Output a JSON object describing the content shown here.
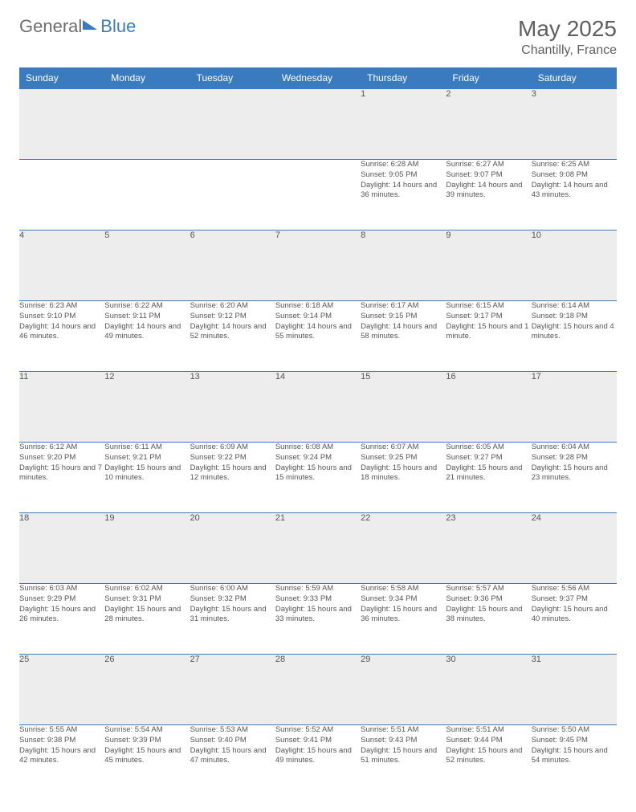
{
  "logo": {
    "text_left": "General",
    "text_right": "Blue",
    "accent_color": "#3a7bbf",
    "muted_color": "#6e6e6e"
  },
  "title": {
    "month_year": "May 2025",
    "location": "Chantilly, France"
  },
  "colors": {
    "header_bg": "#3a7bbf",
    "header_text": "#ffffff",
    "daynum_bg": "#ededed",
    "text": "#555555",
    "rule": "#3a7bbf",
    "page_bg": "#ffffff"
  },
  "day_headers": [
    "Sunday",
    "Monday",
    "Tuesday",
    "Wednesday",
    "Thursday",
    "Friday",
    "Saturday"
  ],
  "weeks": [
    {
      "nums": [
        "",
        "",
        "",
        "",
        "1",
        "2",
        "3"
      ],
      "details": [
        "",
        "",
        "",
        "",
        "Sunrise: 6:28 AM\nSunset: 9:05 PM\nDaylight: 14 hours and 36 minutes.",
        "Sunrise: 6:27 AM\nSunset: 9:07 PM\nDaylight: 14 hours and 39 minutes.",
        "Sunrise: 6:25 AM\nSunset: 9:08 PM\nDaylight: 14 hours and 43 minutes."
      ]
    },
    {
      "nums": [
        "4",
        "5",
        "6",
        "7",
        "8",
        "9",
        "10"
      ],
      "details": [
        "Sunrise: 6:23 AM\nSunset: 9:10 PM\nDaylight: 14 hours and 46 minutes.",
        "Sunrise: 6:22 AM\nSunset: 9:11 PM\nDaylight: 14 hours and 49 minutes.",
        "Sunrise: 6:20 AM\nSunset: 9:12 PM\nDaylight: 14 hours and 52 minutes.",
        "Sunrise: 6:18 AM\nSunset: 9:14 PM\nDaylight: 14 hours and 55 minutes.",
        "Sunrise: 6:17 AM\nSunset: 9:15 PM\nDaylight: 14 hours and 58 minutes.",
        "Sunrise: 6:15 AM\nSunset: 9:17 PM\nDaylight: 15 hours and 1 minute.",
        "Sunrise: 6:14 AM\nSunset: 9:18 PM\nDaylight: 15 hours and 4 minutes."
      ]
    },
    {
      "nums": [
        "11",
        "12",
        "13",
        "14",
        "15",
        "16",
        "17"
      ],
      "details": [
        "Sunrise: 6:12 AM\nSunset: 9:20 PM\nDaylight: 15 hours and 7 minutes.",
        "Sunrise: 6:11 AM\nSunset: 9:21 PM\nDaylight: 15 hours and 10 minutes.",
        "Sunrise: 6:09 AM\nSunset: 9:22 PM\nDaylight: 15 hours and 12 minutes.",
        "Sunrise: 6:08 AM\nSunset: 9:24 PM\nDaylight: 15 hours and 15 minutes.",
        "Sunrise: 6:07 AM\nSunset: 9:25 PM\nDaylight: 15 hours and 18 minutes.",
        "Sunrise: 6:05 AM\nSunset: 9:27 PM\nDaylight: 15 hours and 21 minutes.",
        "Sunrise: 6:04 AM\nSunset: 9:28 PM\nDaylight: 15 hours and 23 minutes."
      ]
    },
    {
      "nums": [
        "18",
        "19",
        "20",
        "21",
        "22",
        "23",
        "24"
      ],
      "details": [
        "Sunrise: 6:03 AM\nSunset: 9:29 PM\nDaylight: 15 hours and 26 minutes.",
        "Sunrise: 6:02 AM\nSunset: 9:31 PM\nDaylight: 15 hours and 28 minutes.",
        "Sunrise: 6:00 AM\nSunset: 9:32 PM\nDaylight: 15 hours and 31 minutes.",
        "Sunrise: 5:59 AM\nSunset: 9:33 PM\nDaylight: 15 hours and 33 minutes.",
        "Sunrise: 5:58 AM\nSunset: 9:34 PM\nDaylight: 15 hours and 36 minutes.",
        "Sunrise: 5:57 AM\nSunset: 9:36 PM\nDaylight: 15 hours and 38 minutes.",
        "Sunrise: 5:56 AM\nSunset: 9:37 PM\nDaylight: 15 hours and 40 minutes."
      ]
    },
    {
      "nums": [
        "25",
        "26",
        "27",
        "28",
        "29",
        "30",
        "31"
      ],
      "details": [
        "Sunrise: 5:55 AM\nSunset: 9:38 PM\nDaylight: 15 hours and 42 minutes.",
        "Sunrise: 5:54 AM\nSunset: 9:39 PM\nDaylight: 15 hours and 45 minutes.",
        "Sunrise: 5:53 AM\nSunset: 9:40 PM\nDaylight: 15 hours and 47 minutes.",
        "Sunrise: 5:52 AM\nSunset: 9:41 PM\nDaylight: 15 hours and 49 minutes.",
        "Sunrise: 5:51 AM\nSunset: 9:43 PM\nDaylight: 15 hours and 51 minutes.",
        "Sunrise: 5:51 AM\nSunset: 9:44 PM\nDaylight: 15 hours and 52 minutes.",
        "Sunrise: 5:50 AM\nSunset: 9:45 PM\nDaylight: 15 hours and 54 minutes."
      ]
    }
  ]
}
